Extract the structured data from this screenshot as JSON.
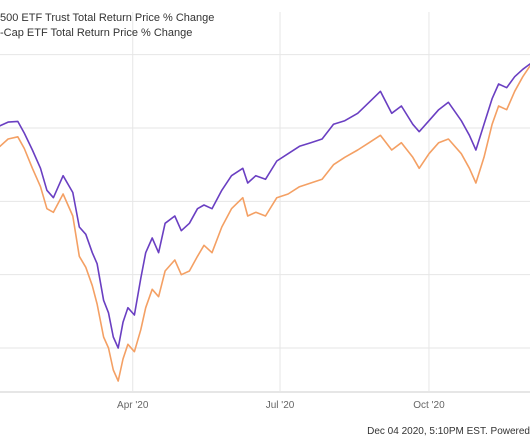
{
  "chart_data": {
    "type": "line",
    "legend": {
      "placement": "top-left",
      "entries": [
        "500 ETF Trust Total Return Price % Change",
        "-Cap ETF Total Return Price % Change"
      ]
    },
    "x_ticks": [
      "Apr '20",
      "Jul '20",
      "Oct '20"
    ],
    "x_tick_dates": [
      "2020-04-01",
      "2020-07-01",
      "2020-10-01"
    ],
    "x_range": [
      "2020-01-10",
      "2020-12-04"
    ],
    "y_range": [
      -36,
      12
    ],
    "y_gridlines": [
      10,
      0,
      -10,
      -20,
      -30
    ],
    "grid": true,
    "footer": "Dec 04 2020, 5:10PM EST. Powered",
    "colors": {
      "series_1": "#6a3fc2",
      "series_2": "#f4a064",
      "grid": "#e6e6e6"
    },
    "series": [
      {
        "legend_index": 0,
        "x": [
          "2020-01-10",
          "2020-01-15",
          "2020-01-21",
          "2020-01-25",
          "2020-01-30",
          "2020-02-04",
          "2020-02-08",
          "2020-02-12",
          "2020-02-18",
          "2020-02-24",
          "2020-02-28",
          "2020-03-03",
          "2020-03-07",
          "2020-03-10",
          "2020-03-14",
          "2020-03-17",
          "2020-03-20",
          "2020-03-23",
          "2020-03-26",
          "2020-03-29",
          "2020-04-02",
          "2020-04-06",
          "2020-04-09",
          "2020-04-13",
          "2020-04-17",
          "2020-04-21",
          "2020-04-27",
          "2020-05-01",
          "2020-05-06",
          "2020-05-11",
          "2020-05-15",
          "2020-05-20",
          "2020-05-26",
          "2020-06-01",
          "2020-06-08",
          "2020-06-11",
          "2020-06-16",
          "2020-06-22",
          "2020-06-29",
          "2020-07-06",
          "2020-07-13",
          "2020-07-20",
          "2020-07-27",
          "2020-08-03",
          "2020-08-10",
          "2020-08-18",
          "2020-08-25",
          "2020-09-01",
          "2020-09-08",
          "2020-09-14",
          "2020-09-21",
          "2020-09-25",
          "2020-10-01",
          "2020-10-07",
          "2020-10-13",
          "2020-10-21",
          "2020-10-26",
          "2020-10-30",
          "2020-11-04",
          "2020-11-09",
          "2020-11-13",
          "2020-11-18",
          "2020-11-23",
          "2020-11-28",
          "2020-12-04"
        ],
        "y": [
          0.3,
          0.8,
          0.9,
          -0.7,
          -3.0,
          -5.5,
          -8.5,
          -9.5,
          -6.5,
          -8.8,
          -13.5,
          -14.5,
          -17.0,
          -18.5,
          -23.5,
          -25.2,
          -28.5,
          -30.0,
          -26.5,
          -24.5,
          -25.5,
          -20.5,
          -17.0,
          -15.0,
          -17.0,
          -13.0,
          -12.0,
          -14.0,
          -13.0,
          -11.0,
          -10.5,
          -11.0,
          -8.5,
          -6.5,
          -5.5,
          -7.5,
          -6.5,
          -7.0,
          -4.5,
          -3.5,
          -2.5,
          -2.0,
          -1.5,
          0.5,
          1.0,
          2.0,
          3.5,
          5.0,
          2.0,
          3.0,
          0.5,
          -0.5,
          1.0,
          2.5,
          3.5,
          1.0,
          -1.0,
          -3.0,
          0.5,
          4.0,
          6.0,
          5.5,
          7.0,
          8.0,
          9.0
        ]
      },
      {
        "legend_index": 1,
        "x": [
          "2020-01-10",
          "2020-01-15",
          "2020-01-21",
          "2020-01-25",
          "2020-01-30",
          "2020-02-04",
          "2020-02-08",
          "2020-02-12",
          "2020-02-18",
          "2020-02-24",
          "2020-02-28",
          "2020-03-03",
          "2020-03-07",
          "2020-03-10",
          "2020-03-14",
          "2020-03-17",
          "2020-03-20",
          "2020-03-23",
          "2020-03-26",
          "2020-03-29",
          "2020-04-02",
          "2020-04-06",
          "2020-04-09",
          "2020-04-13",
          "2020-04-17",
          "2020-04-21",
          "2020-04-27",
          "2020-05-01",
          "2020-05-06",
          "2020-05-11",
          "2020-05-15",
          "2020-05-20",
          "2020-05-26",
          "2020-06-01",
          "2020-06-08",
          "2020-06-11",
          "2020-06-16",
          "2020-06-22",
          "2020-06-29",
          "2020-07-06",
          "2020-07-13",
          "2020-07-20",
          "2020-07-27",
          "2020-08-03",
          "2020-08-10",
          "2020-08-18",
          "2020-08-25",
          "2020-09-01",
          "2020-09-08",
          "2020-09-14",
          "2020-09-21",
          "2020-09-25",
          "2020-10-01",
          "2020-10-07",
          "2020-10-13",
          "2020-10-21",
          "2020-10-26",
          "2020-10-30",
          "2020-11-04",
          "2020-11-09",
          "2020-11-13",
          "2020-11-18",
          "2020-11-23",
          "2020-11-28",
          "2020-12-04"
        ],
        "y": [
          -2.5,
          -1.5,
          -1.2,
          -2.8,
          -5.5,
          -8.0,
          -11.0,
          -11.5,
          -9.0,
          -12.0,
          -17.5,
          -19.0,
          -21.5,
          -24.0,
          -28.5,
          -30.0,
          -33.0,
          -34.5,
          -31.5,
          -29.5,
          -30.5,
          -27.5,
          -24.5,
          -22.0,
          -23.0,
          -19.5,
          -18.0,
          -20.0,
          -19.5,
          -17.5,
          -16.0,
          -17.0,
          -13.5,
          -11.0,
          -9.5,
          -12.0,
          -11.5,
          -12.0,
          -9.5,
          -9.0,
          -8.0,
          -7.5,
          -7.0,
          -5.0,
          -4.0,
          -3.0,
          -2.0,
          -1.0,
          -3.0,
          -2.0,
          -4.0,
          -5.5,
          -3.5,
          -2.0,
          -1.5,
          -3.5,
          -5.5,
          -7.5,
          -4.0,
          0.5,
          3.0,
          2.5,
          5.0,
          7.0,
          9.0
        ]
      }
    ]
  }
}
